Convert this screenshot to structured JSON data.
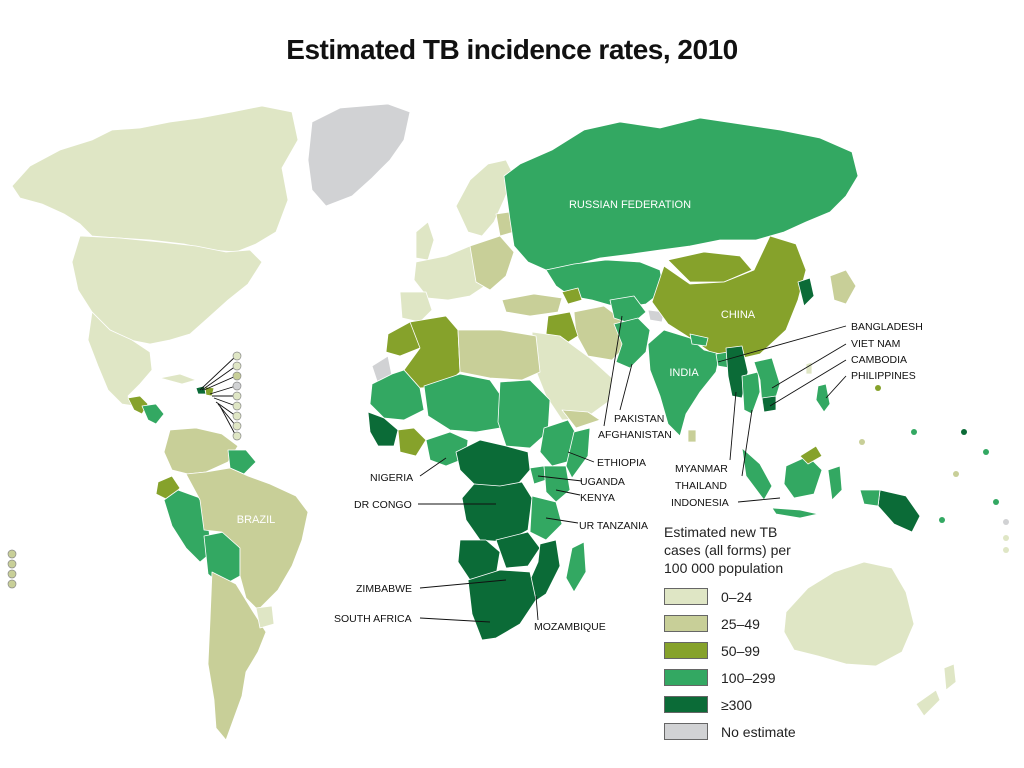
{
  "title": "Estimated TB incidence rates, 2010",
  "legend": {
    "title": "Estimated new TB\ncases (all forms) per\n100 000 population",
    "items": [
      {
        "label": "0–24",
        "color": "#dfe6c5"
      },
      {
        "label": "25–49",
        "color": "#c8cf98"
      },
      {
        "label": "50–99",
        "color": "#86a22b"
      },
      {
        "label": "100–299",
        "color": "#33a862"
      },
      {
        "label": "≥300",
        "color": "#0b6b37"
      },
      {
        "label": "No estimate",
        "color": "#d1d2d4"
      }
    ]
  },
  "region_labels": {
    "russia": "RUSSIAN FEDERATION",
    "china": "CHINA",
    "india": "INDIA",
    "brazil": "BRAZIL"
  },
  "callouts": {
    "bangladesh": "BANGLADESH",
    "viet_nam": "VIET NAM",
    "cambodia": "CAMBODIA",
    "philippines": "PHILIPPINES",
    "pakistan": "PAKISTAN",
    "afghanistan": "AFGHANISTAN",
    "myanmar": "MYANMAR",
    "thailand": "THAILAND",
    "indonesia": "INDONESIA",
    "ethiopia": "ETHIOPIA",
    "uganda": "UGANDA",
    "kenya": "KENYA",
    "ur_tanzania": "UR TANZANIA",
    "nigeria": "NIGERIA",
    "dr_congo": "DR CONGO",
    "zimbabwe": "ZIMBABWE",
    "south_africa": "SOUTH AFRICA",
    "mozambique": "MOZAMBIQUE"
  }
}
